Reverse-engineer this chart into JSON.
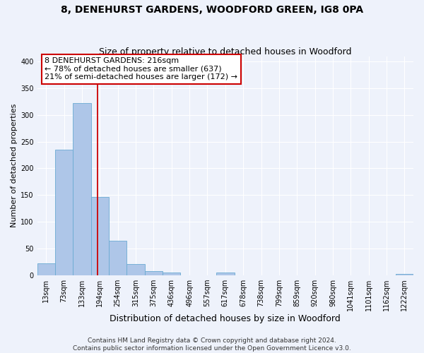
{
  "title": "8, DENEHURST GARDENS, WOODFORD GREEN, IG8 0PA",
  "subtitle": "Size of property relative to detached houses in Woodford",
  "xlabel": "Distribution of detached houses by size in Woodford",
  "ylabel": "Number of detached properties",
  "bar_labels": [
    "13sqm",
    "73sqm",
    "133sqm",
    "194sqm",
    "254sqm",
    "315sqm",
    "375sqm",
    "436sqm",
    "496sqm",
    "557sqm",
    "617sqm",
    "678sqm",
    "738sqm",
    "799sqm",
    "859sqm",
    "920sqm",
    "980sqm",
    "1041sqm",
    "1101sqm",
    "1162sqm",
    "1222sqm"
  ],
  "bar_heights": [
    22,
    235,
    322,
    146,
    65,
    21,
    8,
    5,
    0,
    0,
    5,
    0,
    0,
    0,
    0,
    0,
    0,
    0,
    0,
    0,
    3
  ],
  "bar_color": "#aec6e8",
  "bar_edge_color": "#6aabd2",
  "vline_color": "#cc0000",
  "annotation_title": "8 DENEHURST GARDENS: 216sqm",
  "annotation_line1": "← 78% of detached houses are smaller (637)",
  "annotation_line2": "21% of semi-detached houses are larger (172) →",
  "annotation_box_color": "white",
  "annotation_box_edge_color": "#cc0000",
  "ylim": [
    0,
    410
  ],
  "yticks": [
    0,
    50,
    100,
    150,
    200,
    250,
    300,
    350,
    400
  ],
  "footer_line1": "Contains HM Land Registry data © Crown copyright and database right 2024.",
  "footer_line2": "Contains public sector information licensed under the Open Government Licence v3.0.",
  "background_color": "#eef2fb",
  "grid_color": "white",
  "title_fontsize": 10,
  "subtitle_fontsize": 9,
  "xlabel_fontsize": 9,
  "ylabel_fontsize": 8,
  "tick_fontsize": 7,
  "annotation_fontsize": 8,
  "footer_fontsize": 6.5
}
